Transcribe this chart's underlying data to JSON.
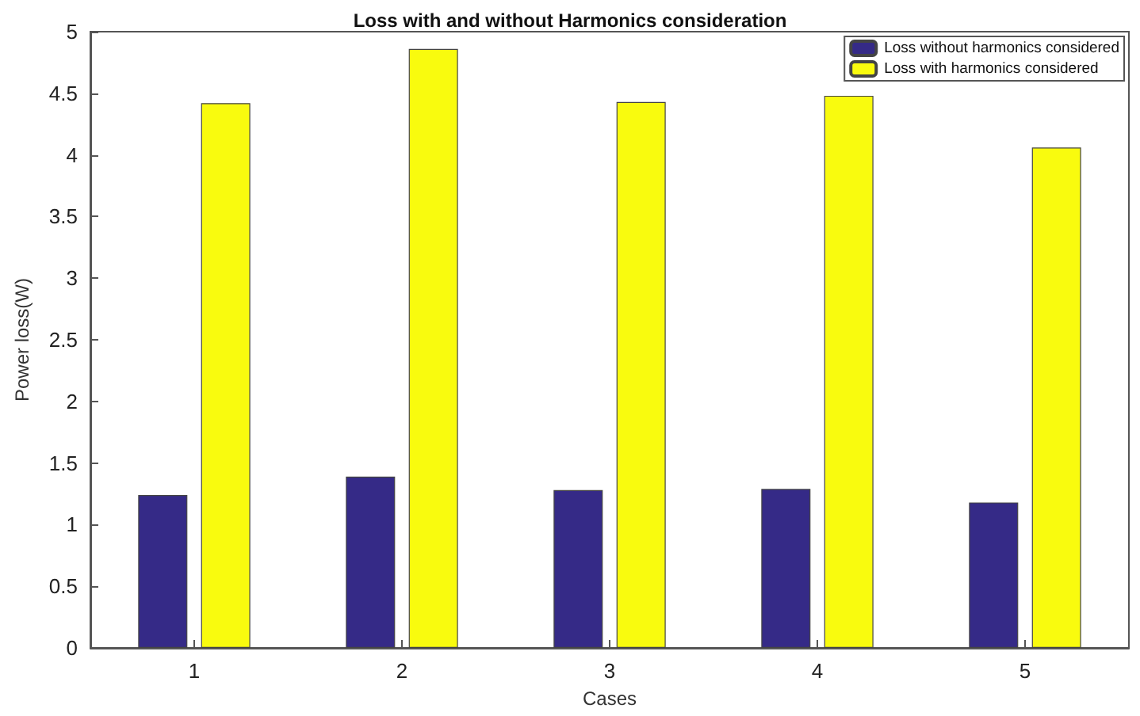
{
  "chart_data": {
    "type": "bar",
    "title": "Loss with and without Harmonics consideration",
    "xlabel": "Cases",
    "ylabel": "Power loss(W)",
    "categories": [
      "1",
      "2",
      "3",
      "4",
      "5"
    ],
    "series": [
      {
        "name": "Loss without harmonics considered",
        "color": "#352a87",
        "values": [
          1.24,
          1.39,
          1.28,
          1.29,
          1.18
        ]
      },
      {
        "name": "Loss with harmonics considered",
        "color": "#f9fb0e",
        "values": [
          4.42,
          4.86,
          4.43,
          4.48,
          4.06
        ]
      }
    ],
    "ylim": [
      0,
      5
    ],
    "yticks": [
      0,
      0.5,
      1,
      1.5,
      2,
      2.5,
      3,
      3.5,
      4,
      4.5,
      5
    ],
    "grid": false,
    "legend": "top right"
  }
}
